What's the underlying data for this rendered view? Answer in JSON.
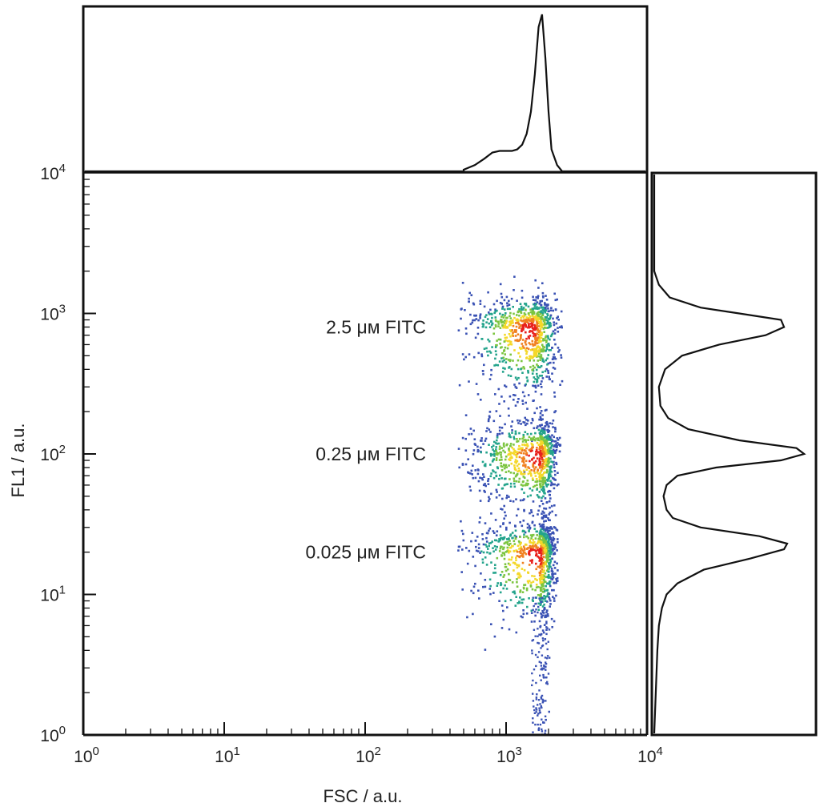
{
  "chart_data": {
    "type": "scatter",
    "title": "",
    "xlabel": "FSC / a.u.",
    "ylabel": "FL1 / a.u.",
    "x_scale": "log",
    "y_scale": "log",
    "xlim": [
      1,
      10000
    ],
    "ylim": [
      1,
      10000
    ],
    "grid": false,
    "x_ticks": [
      {
        "base": "10",
        "exp": "0"
      },
      {
        "base": "10",
        "exp": "1"
      },
      {
        "base": "10",
        "exp": "2"
      },
      {
        "base": "10",
        "exp": "3"
      },
      {
        "base": "10",
        "exp": "4"
      }
    ],
    "y_ticks": [
      {
        "base": "10",
        "exp": "0"
      },
      {
        "base": "10",
        "exp": "1"
      },
      {
        "base": "10",
        "exp": "2"
      },
      {
        "base": "10",
        "exp": "3"
      },
      {
        "base": "10",
        "exp": "4"
      }
    ],
    "populations": [
      {
        "label": "2.5 μм FITC",
        "fsc_center": 1500,
        "fl1_center": 800,
        "fsc_range": [
          450,
          2500
        ],
        "fl1_range": [
          250,
          1400
        ]
      },
      {
        "label": "0.25 μм FITC",
        "fsc_center": 1700,
        "fl1_center": 100,
        "fsc_range": [
          450,
          2400
        ],
        "fl1_range": [
          40,
          180
        ]
      },
      {
        "label": "0.025 μм FITC",
        "fsc_center": 1700,
        "fl1_center": 20,
        "fsc_range": [
          450,
          2300
        ],
        "fl1_range": [
          6,
          35
        ]
      }
    ],
    "top_histogram": {
      "axis": "FSC",
      "x": [
        500,
        600,
        700,
        800,
        900,
        1000,
        1100,
        1200,
        1300,
        1400,
        1500,
        1600,
        1700,
        1800,
        1900,
        2000,
        2100,
        2300,
        2500
      ],
      "y": [
        0.01,
        0.04,
        0.08,
        0.12,
        0.13,
        0.13,
        0.13,
        0.14,
        0.17,
        0.24,
        0.38,
        0.62,
        0.92,
        1.0,
        0.72,
        0.38,
        0.14,
        0.04,
        0.0
      ]
    },
    "right_histogram": {
      "axis": "FL1",
      "fl1": [
        4,
        6,
        8,
        10,
        12,
        15,
        18,
        21,
        23,
        26,
        30,
        35,
        40,
        50,
        60,
        70,
        80,
        90,
        100,
        110,
        125,
        150,
        180,
        220,
        300,
        400,
        500,
        600,
        700,
        800,
        900,
        1000,
        1100,
        1300,
        1600,
        2000
      ],
      "count": [
        0.02,
        0.03,
        0.05,
        0.08,
        0.15,
        0.32,
        0.62,
        0.84,
        0.86,
        0.68,
        0.3,
        0.12,
        0.08,
        0.06,
        0.08,
        0.15,
        0.4,
        0.82,
        0.97,
        0.92,
        0.55,
        0.22,
        0.09,
        0.04,
        0.03,
        0.07,
        0.18,
        0.42,
        0.72,
        0.84,
        0.82,
        0.55,
        0.3,
        0.1,
        0.03,
        0.0
      ]
    }
  }
}
